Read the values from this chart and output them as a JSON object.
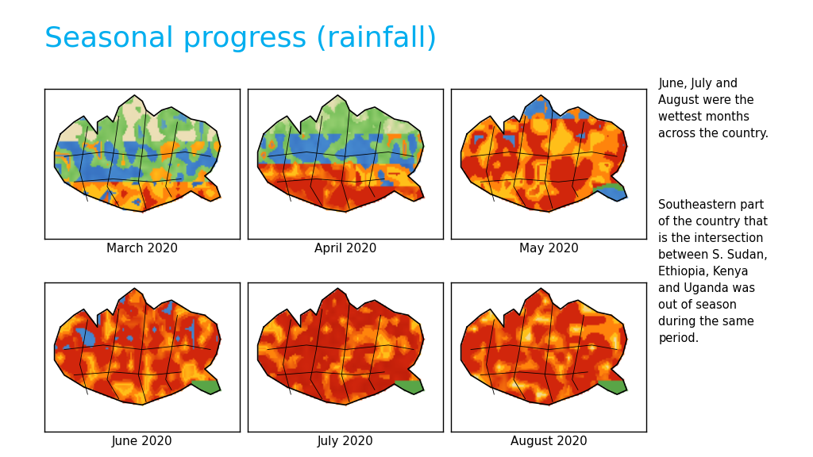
{
  "title": "Seasonal progress (rainfall)",
  "title_color": "#00AEEF",
  "title_fontsize": 26,
  "background_color": "#FFFFFF",
  "months": [
    "March 2020",
    "April 2020",
    "May 2020",
    "June 2020",
    "July 2020",
    "August 2020"
  ],
  "annotation_para1": "June, July and\nAugust were the\nwettest months\nacross the country.",
  "annotation_para2": "Southeastern part\nof the country that\nis the intersection\nbetween S. Sudan,\nEthiopia, Kenya\nand Uganda was\nout of season\nduring the same\nperiod.",
  "annotation_fontsize": 10.5,
  "label_fontsize": 11,
  "white": [
    1.0,
    1.0,
    1.0
  ],
  "beige": [
    0.93,
    0.88,
    0.72
  ],
  "light_green": [
    0.6,
    0.82,
    0.45
  ],
  "mid_green": [
    0.42,
    0.72,
    0.32
  ],
  "blue": [
    0.28,
    0.55,
    0.82
  ],
  "dark_blue": [
    0.18,
    0.38,
    0.72
  ],
  "orange": [
    1.0,
    0.52,
    0.05
  ],
  "yellow_orange": [
    1.0,
    0.75,
    0.1
  ],
  "red": [
    0.82,
    0.15,
    0.05
  ],
  "dark_red": [
    0.65,
    0.08,
    0.02
  ],
  "green_se": [
    0.35,
    0.65,
    0.28
  ]
}
